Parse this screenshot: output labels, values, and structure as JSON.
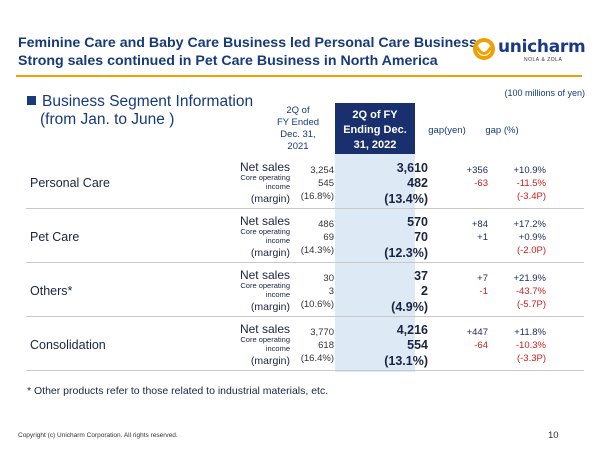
{
  "title_line1": "Feminine Care and Baby Care Business led Personal Care Business",
  "title_line2": "Strong sales continued in Pet Care Business in North America",
  "logo": {
    "text": "unicharm",
    "sub": "NOLA & ZOLA",
    "accent_color": "#f0a000",
    "brand_color": "#1a3a85"
  },
  "unit_note": "(100 millions of yen)",
  "section": {
    "line1": "Business Segment Information",
    "line2": "(from Jan. to June )"
  },
  "headers": {
    "prev": [
      "2Q of",
      "FY Ended",
      "Dec. 31,",
      "2021"
    ],
    "cur": [
      "2Q of FY",
      "Ending Dec.",
      "31, 2022"
    ],
    "gap_yen": "gap(yen)",
    "gap_pct": "gap (%)"
  },
  "row_labels": {
    "net_sales": "Net sales",
    "core1": "Core operating",
    "core2": "income",
    "margin": "(margin)"
  },
  "rows": [
    {
      "segment": "Personal Care",
      "prev": [
        "3,254",
        "545",
        "(16.8%)"
      ],
      "cur": [
        "3,610",
        "482",
        "(13.4%)"
      ],
      "gap_yen": [
        "+356",
        "-63"
      ],
      "gap_pct": [
        "+10.9%",
        "-11.5%",
        "(-3.4P)"
      ]
    },
    {
      "segment": "Pet Care",
      "prev": [
        "486",
        "69",
        "(14.3%)"
      ],
      "cur": [
        "570",
        "70",
        "(12.3%)"
      ],
      "gap_yen": [
        "+84",
        "+1"
      ],
      "gap_pct": [
        "+17.2%",
        "+0.9%",
        "(-2.0P)"
      ]
    },
    {
      "segment": "Others*",
      "prev": [
        "30",
        "3",
        "(10.6%)"
      ],
      "cur": [
        "37",
        "2",
        "(4.9%)"
      ],
      "gap_yen": [
        "+7",
        "-1"
      ],
      "gap_pct": [
        "+21.9%",
        "-43.7%",
        "(-5.7P)"
      ]
    },
    {
      "segment": "Consolidation",
      "prev": [
        "3,770",
        "618",
        "(16.4%)"
      ],
      "cur": [
        "4,216",
        "554",
        "(13.1%)"
      ],
      "gap_yen": [
        "+447",
        "-64"
      ],
      "gap_pct": [
        "+11.8%",
        "-10.3%",
        "(-3.3P)"
      ]
    }
  ],
  "footnote": "* Other products refer to those related to industrial materials, etc.",
  "copyright": "Copyright (c) Unicharm Corporation. All rights reserved.",
  "page_number": "10"
}
